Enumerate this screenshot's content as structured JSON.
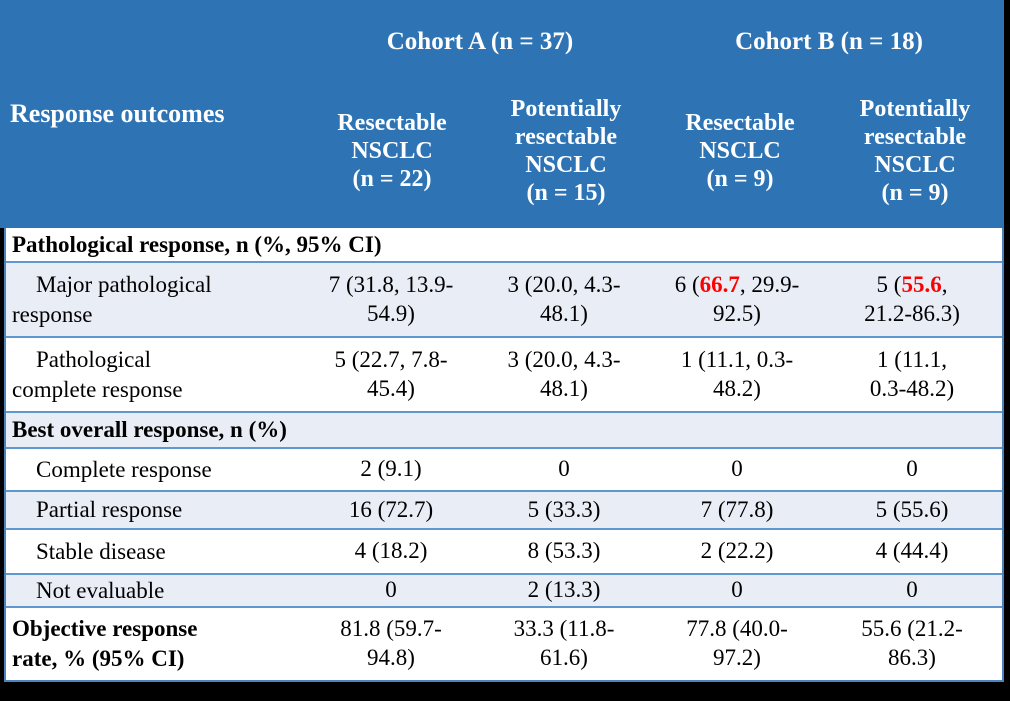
{
  "colors": {
    "header_bg": "#2E74B5",
    "band_bg": "#E9EDF6",
    "row_border": "#5F97CF",
    "highlight_red": "#FF0000"
  },
  "header": {
    "row_header": "Response outcomes",
    "cohorts": [
      "Cohort A (n = 37)",
      "Cohort B (n = 18)"
    ],
    "columns": [
      "Resectable\nNSCLC\n(n = 22)",
      "Potentially\nresectable\nNSCLC\n(n = 15)",
      "Resectable\nNSCLC\n(n = 9)",
      "Potentially\nresectable\nNSCLC\n(n = 9)"
    ]
  },
  "rows": [
    {
      "type": "section",
      "label": "Pathological response, n (%, 95% CI)"
    },
    {
      "type": "data",
      "label": "Major pathological\nresponse",
      "cells": [
        "7 (31.8, 13.9-\n54.9)",
        "3 (20.0, 4.3-\n48.1)",
        {
          "pre": "6 (",
          "red": "66.7",
          "post": ", 29.9-\n92.5)"
        },
        {
          "pre": "5 (",
          "red": "55.6",
          "post": ",\n21.2-86.3)"
        }
      ]
    },
    {
      "type": "data",
      "label": "Pathological\ncomplete response",
      "cells": [
        "5 (22.7, 7.8-\n45.4)",
        "3 (20.0, 4.3-\n48.1)",
        "1 (11.1, 0.3-\n48.2)",
        "1 (11.1,\n0.3-48.2)"
      ]
    },
    {
      "type": "section",
      "label": "Best overall response, n (%)"
    },
    {
      "type": "data",
      "label": "Complete response",
      "cells": [
        "2 (9.1)",
        "0",
        "0",
        "0"
      ]
    },
    {
      "type": "data",
      "label": "Partial response",
      "cells": [
        "16 (72.7)",
        "5 (33.3)",
        "7 (77.8)",
        "5 (55.6)"
      ]
    },
    {
      "type": "data",
      "label": "Stable disease",
      "cells": [
        "4 (18.2)",
        "8 (53.3)",
        "2 (22.2)",
        "4 (44.4)"
      ]
    },
    {
      "type": "data",
      "label": "Not evaluable",
      "cells": [
        "0",
        "2 (13.3)",
        "0",
        "0"
      ]
    },
    {
      "type": "total",
      "label": "Objective response\nrate, % (95% CI)",
      "cells": [
        "81.8 (59.7-\n94.8)",
        "33.3 (11.8-\n61.6)",
        "77.8 (40.0-\n97.2)",
        "55.6 (21.2-\n86.3)"
      ]
    }
  ]
}
